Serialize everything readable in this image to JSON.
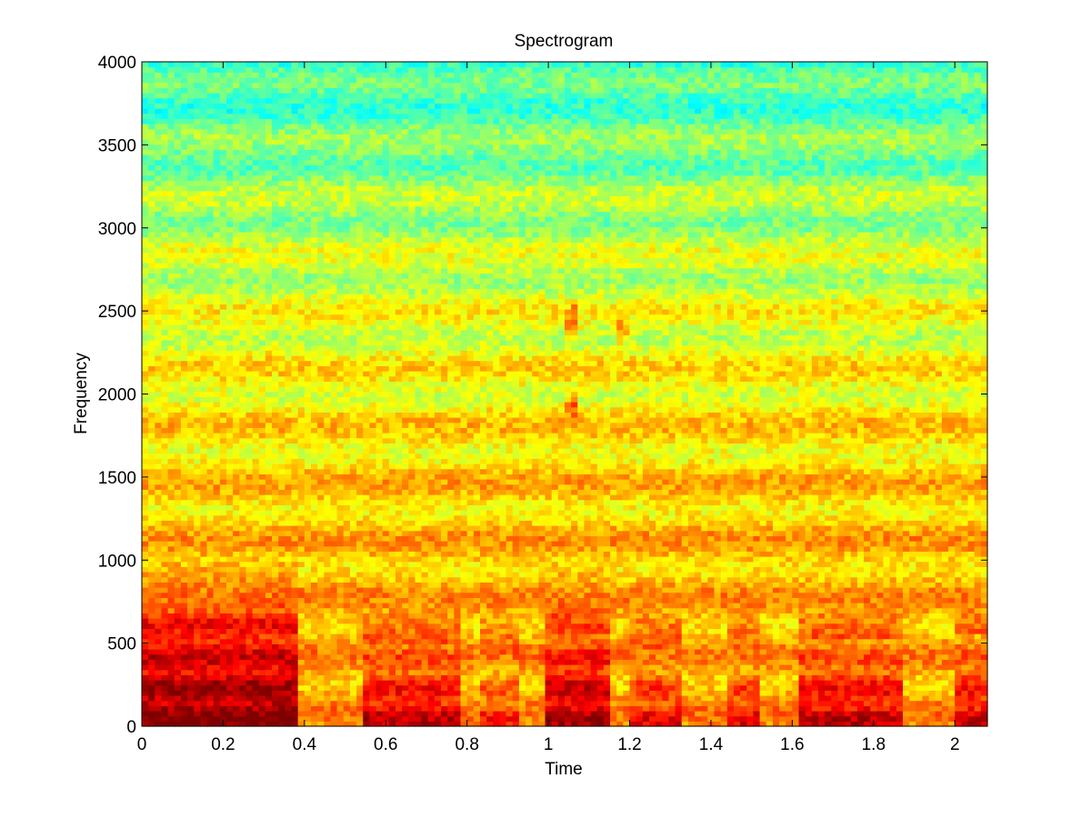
{
  "chart_data": {
    "type": "heatmap",
    "title": "Spectrogram",
    "xlabel": "Time",
    "ylabel": "Frequency",
    "xlim": [
      0,
      2.08
    ],
    "ylim": [
      0,
      4000
    ],
    "xticks": [
      0,
      0.2,
      0.4,
      0.6,
      0.8,
      1,
      1.2,
      1.4,
      1.6,
      1.8,
      2
    ],
    "yticks": [
      0,
      500,
      1000,
      1500,
      2000,
      2500,
      3000,
      3500,
      4000
    ],
    "colormap": "jet",
    "grid": false,
    "time_bins": 130,
    "freq_bins": 129,
    "energy_bursts": [
      {
        "t_start": 0.0,
        "t_end": 0.38,
        "f_high": 700,
        "level": 1.0
      },
      {
        "t_start": 0.54,
        "t_end": 0.78,
        "f_high": 500,
        "level": 0.92
      },
      {
        "t_start": 0.84,
        "t_end": 0.92,
        "f_high": 420,
        "level": 0.85
      },
      {
        "t_start": 1.0,
        "t_end": 1.15,
        "f_high": 650,
        "level": 0.95
      },
      {
        "t_start": 1.2,
        "t_end": 1.32,
        "f_high": 480,
        "level": 0.88
      },
      {
        "t_start": 1.44,
        "t_end": 1.52,
        "f_high": 450,
        "level": 0.88
      },
      {
        "t_start": 1.62,
        "t_end": 1.88,
        "f_high": 520,
        "level": 0.92
      },
      {
        "t_start": 2.0,
        "t_end": 2.08,
        "f_high": 560,
        "level": 0.9
      }
    ],
    "formant_regions": [
      {
        "t": 1.06,
        "f": 1900,
        "level": 0.8
      },
      {
        "t": 1.06,
        "f": 2450,
        "level": 0.8
      },
      {
        "t": 1.18,
        "f": 2400,
        "level": 0.75
      },
      {
        "t": 0.32,
        "f": 2200,
        "level": 0.7
      },
      {
        "t": 0.72,
        "f": 2300,
        "level": 0.65
      }
    ]
  }
}
